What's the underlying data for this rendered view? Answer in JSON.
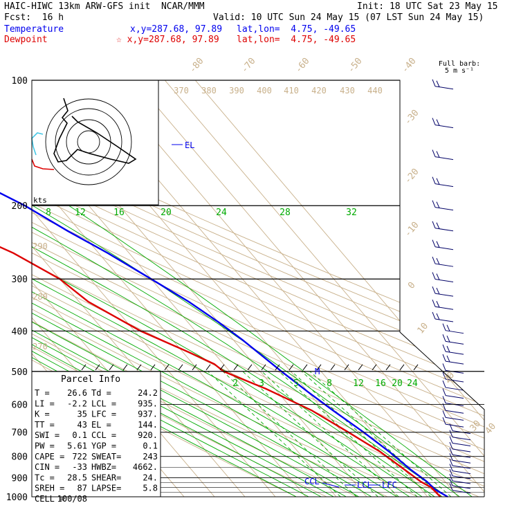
{
  "header": {
    "model": "HAIC-HIWC 13km ARW-GFS init",
    "org": "NCAR/MMM",
    "init": "Init: 18 UTC Sat 23 May 15",
    "fcst_label": "Fcst:",
    "fcst_value": "16 h",
    "valid": "Valid: 10 UTC Sun 24 May 15 (07 LST Sun 24 May 15)",
    "temperature_label": "Temperature",
    "temperature_xy": "x,y=287.68, 97.89",
    "temperature_latlon": "lat,lon=  4.75, -49.65",
    "dewpoint_label": "Dewpoint",
    "dewpoint_xy": "x,y=287.68, 97.89",
    "dewpoint_latlon": "lat,lon=  4.75, -49.65",
    "star": "☆",
    "barb_label_1": "Full barb:",
    "barb_label_2": "5 m s⁻¹",
    "kts_label": "kts",
    "colors": {
      "temperature": "#0000ee",
      "dewpoint": "#dd0000",
      "mixing_ratio": "#00aa00",
      "dry_adiabat": "#c8b08a",
      "isobar": "#000000"
    }
  },
  "parcel_info": {
    "title": "Parcel Info",
    "rows": [
      [
        "T  =",
        "26.6",
        "Td =",
        "24.2"
      ],
      [
        "LI =",
        "-2.2",
        "LCL =",
        "935."
      ],
      [
        "K  =",
        "35",
        "LFC =",
        "937."
      ],
      [
        "TT =",
        "43",
        "EL =",
        "144."
      ],
      [
        "SWI =",
        "0.1",
        "CCL =",
        "920."
      ],
      [
        "PW =",
        "5.61",
        "YGP =",
        "0.1"
      ],
      [
        "CAPE =",
        "722",
        "SWEAT=",
        "243"
      ],
      [
        "CIN =",
        "-33",
        "HWBZ=",
        "4662."
      ],
      [
        "Tc =",
        "28.5",
        "SHEAR=",
        "24."
      ],
      [
        "SREH =",
        "87",
        "LAPSE=",
        "5.8"
      ],
      [
        "CELL =",
        "100/08",
        "",
        ""
      ]
    ]
  },
  "chart_data": {
    "type": "line",
    "title": "",
    "y_axis": "pressure (hPa), log scale",
    "ylim": [
      1000,
      100
    ],
    "pressure_ticks": [
      100,
      200,
      300,
      400,
      500,
      600,
      700,
      800,
      900,
      1000
    ],
    "isotherm_labels": [
      "-80",
      "-70",
      "-60",
      "-50",
      "-40",
      "-30",
      "-20",
      "-10",
      "0",
      "10",
      "20",
      "30",
      "40"
    ],
    "dry_adiabat_labels": [
      "370",
      "380",
      "390",
      "400",
      "410",
      "420",
      "430",
      "440",
      "290",
      "280",
      "270"
    ],
    "mixing_ratio_labels_upper": [
      "8",
      "12",
      "16",
      "20",
      "24",
      "28",
      "32"
    ],
    "mixing_ratio_labels_lower": [
      "2",
      "3",
      "5",
      "8",
      "12",
      "16",
      "20",
      "24"
    ],
    "level_labels": [
      "EL",
      "M",
      "CCL",
      "LCL",
      "LFC"
    ],
    "series": [
      {
        "name": "Temperature",
        "color": "#0000ee",
        "x": [
          -46,
          -48,
          -47,
          -44,
          -38,
          -31,
          -24,
          -17,
          -10,
          -4,
          0,
          3,
          7,
          10,
          13,
          17,
          20,
          22,
          24,
          24.5,
          26.6
        ],
        "p": [
          100,
          120,
          140,
          160,
          180,
          200,
          230,
          260,
          300,
          340,
          380,
          420,
          500,
          560,
          620,
          700,
          780,
          860,
          920,
          960,
          1000
        ]
      },
      {
        "name": "Dewpoint",
        "color": "#dd0000",
        "x": [
          -78,
          -80,
          -76,
          -73,
          -71,
          -68,
          -58,
          -48,
          -40,
          -37,
          -28,
          -18,
          -13,
          -12,
          -3,
          6,
          12,
          17,
          20,
          22,
          23.8,
          24.2
        ],
        "p": [
          100,
          120,
          140,
          160,
          180,
          200,
          230,
          260,
          300,
          340,
          400,
          450,
          480,
          500,
          550,
          620,
          700,
          780,
          860,
          920,
          950,
          1000
        ]
      }
    ],
    "wind_barbs_note": "wind barbs on right side, 100–1000 hPa"
  }
}
